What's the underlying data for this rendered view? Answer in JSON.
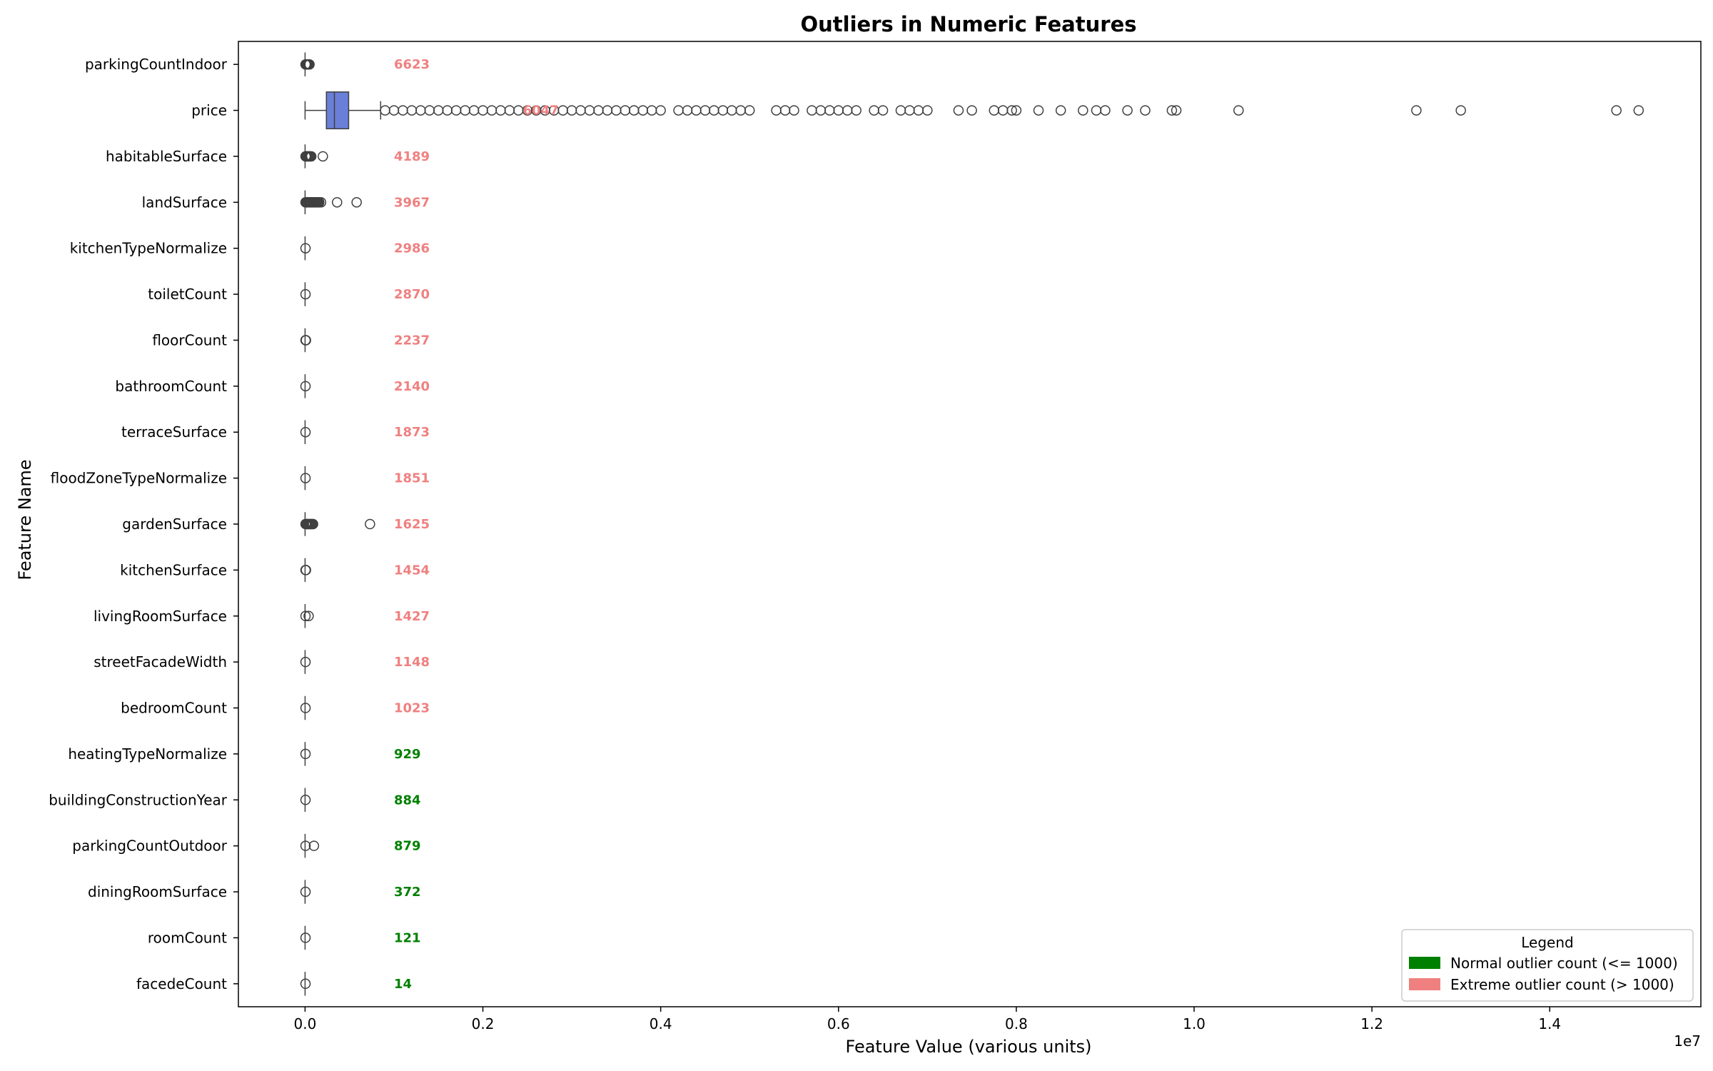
{
  "chart_data": {
    "type": "box",
    "title": "Outliers in Numeric Features",
    "xlabel": "Feature Value (various units)",
    "ylabel": "Feature Name",
    "x_scale_note": "1e7",
    "xlim": [
      -0.075,
      1.57
    ],
    "x_ticks": [
      0.0,
      0.2,
      0.4,
      0.6,
      0.8,
      1.0,
      1.2,
      1.4
    ],
    "x_tick_labels": [
      "0.0",
      "0.2",
      "0.4",
      "0.6",
      "0.8",
      "1.0",
      "1.2",
      "1.4"
    ],
    "count_label_x": 0.1,
    "threshold": 1000,
    "colors": {
      "normal": "#008000",
      "extreme": "#f08080",
      "box_fill": "#6a7fd8",
      "box_edge": "#3f3f3f"
    },
    "legend": {
      "title": "Legend",
      "position": "lower-right",
      "items": [
        {
          "label": "Normal outlier count (<= 1000)",
          "color": "#008000"
        },
        {
          "label": "Extreme outlier count (> 1000)",
          "color": "#f08080"
        }
      ]
    },
    "features": [
      {
        "name": "parkingCountIndoor",
        "count": 6623,
        "count_label": "6623",
        "box": [
          0.0,
          0.0,
          0.0,
          0.0,
          0.0
        ],
        "outliers": [
          0.0005,
          0.001,
          0.0015,
          0.002,
          0.0025,
          0.003,
          0.004,
          0.005
        ]
      },
      {
        "name": "price",
        "count": 6047,
        "count_label": "6047",
        "box": [
          0.0,
          0.024,
          0.033,
          0.049,
          0.085
        ],
        "outliers": [
          0.09,
          0.1,
          0.11,
          0.12,
          0.13,
          0.14,
          0.15,
          0.16,
          0.17,
          0.18,
          0.19,
          0.2,
          0.21,
          0.22,
          0.23,
          0.24,
          0.25,
          0.26,
          0.27,
          0.28,
          0.29,
          0.3,
          0.31,
          0.32,
          0.33,
          0.34,
          0.35,
          0.36,
          0.37,
          0.38,
          0.39,
          0.4,
          0.42,
          0.43,
          0.44,
          0.45,
          0.46,
          0.47,
          0.48,
          0.49,
          0.5,
          0.53,
          0.54,
          0.55,
          0.57,
          0.58,
          0.59,
          0.6,
          0.61,
          0.62,
          0.64,
          0.65,
          0.67,
          0.68,
          0.69,
          0.7,
          0.735,
          0.75,
          0.775,
          0.785,
          0.795,
          0.8,
          0.825,
          0.85,
          0.875,
          0.89,
          0.9,
          0.925,
          0.945,
          0.975,
          0.98,
          1.05,
          1.25,
          1.3,
          1.475,
          1.5
        ]
      },
      {
        "name": "habitableSurface",
        "count": 4189,
        "count_label": "4189",
        "box": [
          0.0,
          0.0,
          0.0,
          0.0,
          0.0
        ],
        "outliers": [
          0.0005,
          0.001,
          0.002,
          0.003,
          0.004,
          0.005,
          0.006,
          0.007,
          0.02
        ]
      },
      {
        "name": "landSurface",
        "count": 3967,
        "count_label": "3967",
        "box": [
          0.0,
          0.0,
          0.0,
          0.0,
          0.0
        ],
        "outliers": [
          0.0005,
          0.001,
          0.002,
          0.003,
          0.004,
          0.005,
          0.006,
          0.007,
          0.008,
          0.009,
          0.01,
          0.011,
          0.012,
          0.013,
          0.014,
          0.015,
          0.016,
          0.018,
          0.036,
          0.058
        ]
      },
      {
        "name": "kitchenTypeNormalize",
        "count": 2986,
        "count_label": "2986",
        "box": [
          0.0,
          0.0,
          0.0,
          0.0,
          0.0
        ],
        "outliers": [
          0.0005
        ]
      },
      {
        "name": "toiletCount",
        "count": 2870,
        "count_label": "2870",
        "box": [
          0.0,
          0.0,
          0.0,
          0.0,
          0.0
        ],
        "outliers": [
          0.0005
        ]
      },
      {
        "name": "floorCount",
        "count": 2237,
        "count_label": "2237",
        "box": [
          0.0,
          0.0,
          0.0,
          0.0,
          0.0
        ],
        "outliers": [
          0.0005,
          0.001
        ]
      },
      {
        "name": "bathroomCount",
        "count": 2140,
        "count_label": "2140",
        "box": [
          0.0,
          0.0,
          0.0,
          0.0,
          0.0
        ],
        "outliers": [
          0.0005
        ]
      },
      {
        "name": "terraceSurface",
        "count": 1873,
        "count_label": "1873",
        "box": [
          0.0,
          0.0,
          0.0,
          0.0,
          0.0
        ],
        "outliers": [
          0.0005
        ]
      },
      {
        "name": "floodZoneTypeNormalize",
        "count": 1851,
        "count_label": "1851",
        "box": [
          0.0,
          0.0,
          0.0,
          0.0,
          0.0
        ],
        "outliers": [
          0.0005
        ]
      },
      {
        "name": "gardenSurface",
        "count": 1625,
        "count_label": "1625",
        "box": [
          0.0,
          0.0,
          0.0,
          0.0,
          0.0
        ],
        "outliers": [
          0.0005,
          0.001,
          0.002,
          0.003,
          0.004,
          0.005,
          0.006,
          0.007,
          0.008,
          0.009,
          0.073
        ]
      },
      {
        "name": "kitchenSurface",
        "count": 1454,
        "count_label": "1454",
        "box": [
          0.0,
          0.0,
          0.0,
          0.0,
          0.0
        ],
        "outliers": [
          0.0005,
          0.001
        ]
      },
      {
        "name": "livingRoomSurface",
        "count": 1427,
        "count_label": "1427",
        "box": [
          0.0,
          0.0,
          0.0,
          0.0,
          0.0
        ],
        "outliers": [
          0.0005,
          0.004
        ]
      },
      {
        "name": "streetFacadeWidth",
        "count": 1148,
        "count_label": "1148",
        "box": [
          0.0,
          0.0,
          0.0,
          0.0,
          0.0
        ],
        "outliers": [
          0.0005
        ]
      },
      {
        "name": "bedroomCount",
        "count": 1023,
        "count_label": "1023",
        "box": [
          0.0,
          0.0,
          0.0,
          0.0,
          0.0
        ],
        "outliers": [
          0.0005
        ]
      },
      {
        "name": "heatingTypeNormalize",
        "count": 929,
        "count_label": "929",
        "box": [
          0.0,
          0.0,
          0.0,
          0.0,
          0.0
        ],
        "outliers": [
          0.0005
        ]
      },
      {
        "name": "buildingConstructionYear",
        "count": 884,
        "count_label": "884",
        "box": [
          0.0,
          0.0,
          0.0,
          0.0,
          0.0
        ],
        "outliers": [
          0.0005
        ]
      },
      {
        "name": "parkingCountOutdoor",
        "count": 879,
        "count_label": "879",
        "box": [
          0.0,
          0.0,
          0.0,
          0.0,
          0.0
        ],
        "outliers": [
          0.0005,
          0.01
        ]
      },
      {
        "name": "diningRoomSurface",
        "count": 372,
        "count_label": "372",
        "box": [
          0.0,
          0.0,
          0.0,
          0.0,
          0.0
        ],
        "outliers": [
          0.0005
        ]
      },
      {
        "name": "roomCount",
        "count": 121,
        "count_label": "121",
        "box": [
          0.0,
          0.0,
          0.0,
          0.0,
          0.0
        ],
        "outliers": [
          0.0005
        ]
      },
      {
        "name": "facedeCount",
        "count": 14,
        "count_label": "14",
        "box": [
          0.0,
          0.0,
          0.0,
          0.0,
          0.0
        ],
        "outliers": [
          0.0005
        ]
      }
    ]
  }
}
